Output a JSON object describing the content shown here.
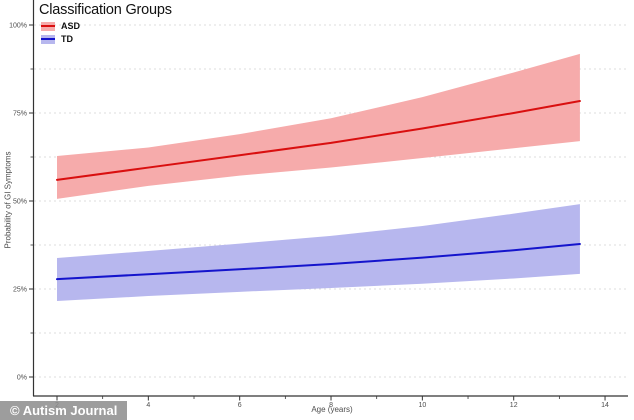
{
  "watermark": {
    "text": "© Autism Journal",
    "bg": "#8c8c8c",
    "fg": "#ffffff"
  },
  "chart_data": {
    "type": "line",
    "title": "",
    "legend": {
      "title": "Classification Groups",
      "position": "top-left",
      "entries": [
        "ASD",
        "TD"
      ]
    },
    "xlabel": "Age (years)",
    "ylabel": "Probability of GI Symptoms",
    "xlim": [
      1.5,
      14.6
    ],
    "ylim": [
      0,
      100
    ],
    "grid": "horizontal-dashed",
    "grid_values": [
      0,
      12.5,
      25,
      37.5,
      50,
      62.5,
      75,
      87.5,
      100
    ],
    "x_ticks": [
      2,
      4,
      6,
      8,
      10,
      12,
      14
    ],
    "x_minor_ticks": [
      3,
      5,
      7,
      9,
      11,
      13
    ],
    "y_ticks": [
      {
        "label": "0%",
        "value": 0
      },
      {
        "label": "25%",
        "value": 25
      },
      {
        "label": "50%",
        "value": 50
      },
      {
        "label": "75%",
        "value": 75
      },
      {
        "label": "100%",
        "value": 100
      }
    ],
    "y_minor_ticks": [
      12.5,
      37.5,
      62.5,
      87.5
    ],
    "x": [
      2,
      4,
      6,
      8,
      10,
      12,
      13.45
    ],
    "series": [
      {
        "name": "ASD",
        "line_color": "#d90f0f",
        "band_color": "#f6abab",
        "values": [
          56.0,
          59.5,
          63.0,
          66.5,
          70.6,
          75.0,
          78.4
        ],
        "ci_upper": [
          62.8,
          65.2,
          69.0,
          73.5,
          79.5,
          86.5,
          91.8
        ],
        "ci_lower": [
          50.6,
          54.3,
          57.2,
          59.5,
          62.2,
          65.0,
          67.0
        ]
      },
      {
        "name": "TD",
        "line_color": "#1414cc",
        "band_color": "#b7b7ee",
        "values": [
          27.8,
          29.2,
          30.6,
          32.1,
          33.9,
          36.0,
          37.8
        ],
        "ci_upper": [
          33.8,
          35.8,
          37.9,
          40.1,
          42.9,
          46.4,
          49.1
        ],
        "ci_lower": [
          21.6,
          23.0,
          24.2,
          25.3,
          26.5,
          28.0,
          29.3
        ]
      }
    ],
    "colors": {
      "grid": "#dedede",
      "axis": "#333333",
      "tick_text": "#4d4d4d",
      "title_text": "#111111"
    }
  }
}
